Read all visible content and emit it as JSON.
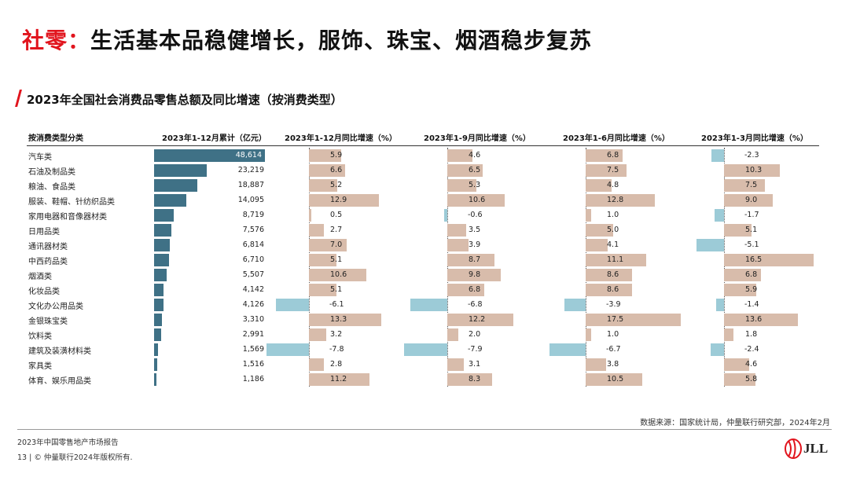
{
  "page": {
    "title_accent": "社零：",
    "title_rest": "生活基本品稳健增长，服饰、珠宝、烟酒稳步复苏",
    "subtitle": "2023年全国社会消费品零售总额及同比增速（按消费类型）",
    "source": "数据来源：国家统计局，仲量联行研究部，2024年2月",
    "report_name": "2023年中国零售地产市场报告",
    "copyright": "13 | © 仲量联行2024年版权所有.",
    "logo_text": "JLL"
  },
  "colors": {
    "accent": "#e1141d",
    "main_bar": "#3f7186",
    "positive_bar": "#d8bcab",
    "negative_bar": "#9ccbd7"
  },
  "chart_data": {
    "type": "bar",
    "category_header": "按消费类型分类",
    "categories": [
      "汽车类",
      "石油及制品类",
      "粮油、食品类",
      "服装、鞋帽、针纺织品类",
      "家用电器和音像器材类",
      "日用品类",
      "通讯器材类",
      "中西药品类",
      "烟酒类",
      "化妆品类",
      "文化办公用品类",
      "金银珠宝类",
      "饮料类",
      "建筑及装潢材料类",
      "家具类",
      "体育、娱乐用品类"
    ],
    "series": [
      {
        "name": "2023年1-12月累计（亿元）",
        "values": [
          48614,
          23219,
          18887,
          14095,
          8719,
          7576,
          6814,
          6710,
          5507,
          4142,
          4126,
          3310,
          2991,
          1569,
          1516,
          1186
        ],
        "labels": [
          "48,614",
          "23,219",
          "18,887",
          "14,095",
          "8,719",
          "7,576",
          "6,814",
          "6,710",
          "5,507",
          "4,142",
          "4,126",
          "3,310",
          "2,991",
          "1,569",
          "1,516",
          "1,186"
        ]
      },
      {
        "name": "2023年1-12月同比增速（%）",
        "values": [
          5.9,
          6.6,
          5.2,
          12.9,
          0.5,
          2.7,
          7.0,
          5.1,
          10.6,
          5.1,
          -6.1,
          13.3,
          3.2,
          -7.8,
          2.8,
          11.2
        ],
        "labels": [
          "5.9",
          "6.6",
          "5.2",
          "12.9",
          "0.5",
          "2.7",
          "7.0",
          "5.1",
          "10.6",
          "5.1",
          "-6.1",
          "13.3",
          "3.2",
          "-7.8",
          "2.8",
          "11.2"
        ]
      },
      {
        "name": "2023年1-9月同比增速（%）",
        "values": [
          4.6,
          6.5,
          5.3,
          10.6,
          -0.6,
          3.5,
          3.9,
          8.7,
          9.8,
          6.8,
          -6.8,
          12.2,
          2.0,
          -7.9,
          3.1,
          8.3
        ],
        "labels": [
          "4.6",
          "6.5",
          "5.3",
          "10.6",
          "-0.6",
          "3.5",
          "3.9",
          "8.7",
          "9.8",
          "6.8",
          "-6.8",
          "12.2",
          "2.0",
          "-7.9",
          "3.1",
          "8.3"
        ]
      },
      {
        "name": "2023年1-6月同比增速（%）",
        "values": [
          6.8,
          7.5,
          4.8,
          12.8,
          1.0,
          5.0,
          4.1,
          11.1,
          8.6,
          8.6,
          -3.9,
          17.5,
          1.0,
          -6.7,
          3.8,
          10.5
        ],
        "labels": [
          "6.8",
          "7.5",
          "4.8",
          "12.8",
          "1.0",
          "5.0",
          "4.1",
          "11.1",
          "8.6",
          "8.6",
          "-3.9",
          "17.5",
          "1.0",
          "-6.7",
          "3.8",
          "10.5"
        ]
      },
      {
        "name": "2023年1-3月同比增速（%）",
        "values": [
          -2.3,
          10.3,
          7.5,
          9.0,
          -1.7,
          5.1,
          -5.1,
          16.5,
          6.8,
          5.9,
          -1.4,
          13.6,
          1.8,
          -2.4,
          4.6,
          5.8
        ],
        "labels": [
          "-2.3",
          "10.3",
          "7.5",
          "9.0",
          "-1.7",
          "5.1",
          "-5.1",
          "16.5",
          "6.8",
          "5.9",
          "-1.4",
          "13.6",
          "1.8",
          "-2.4",
          "4.6",
          "5.8"
        ]
      }
    ]
  }
}
